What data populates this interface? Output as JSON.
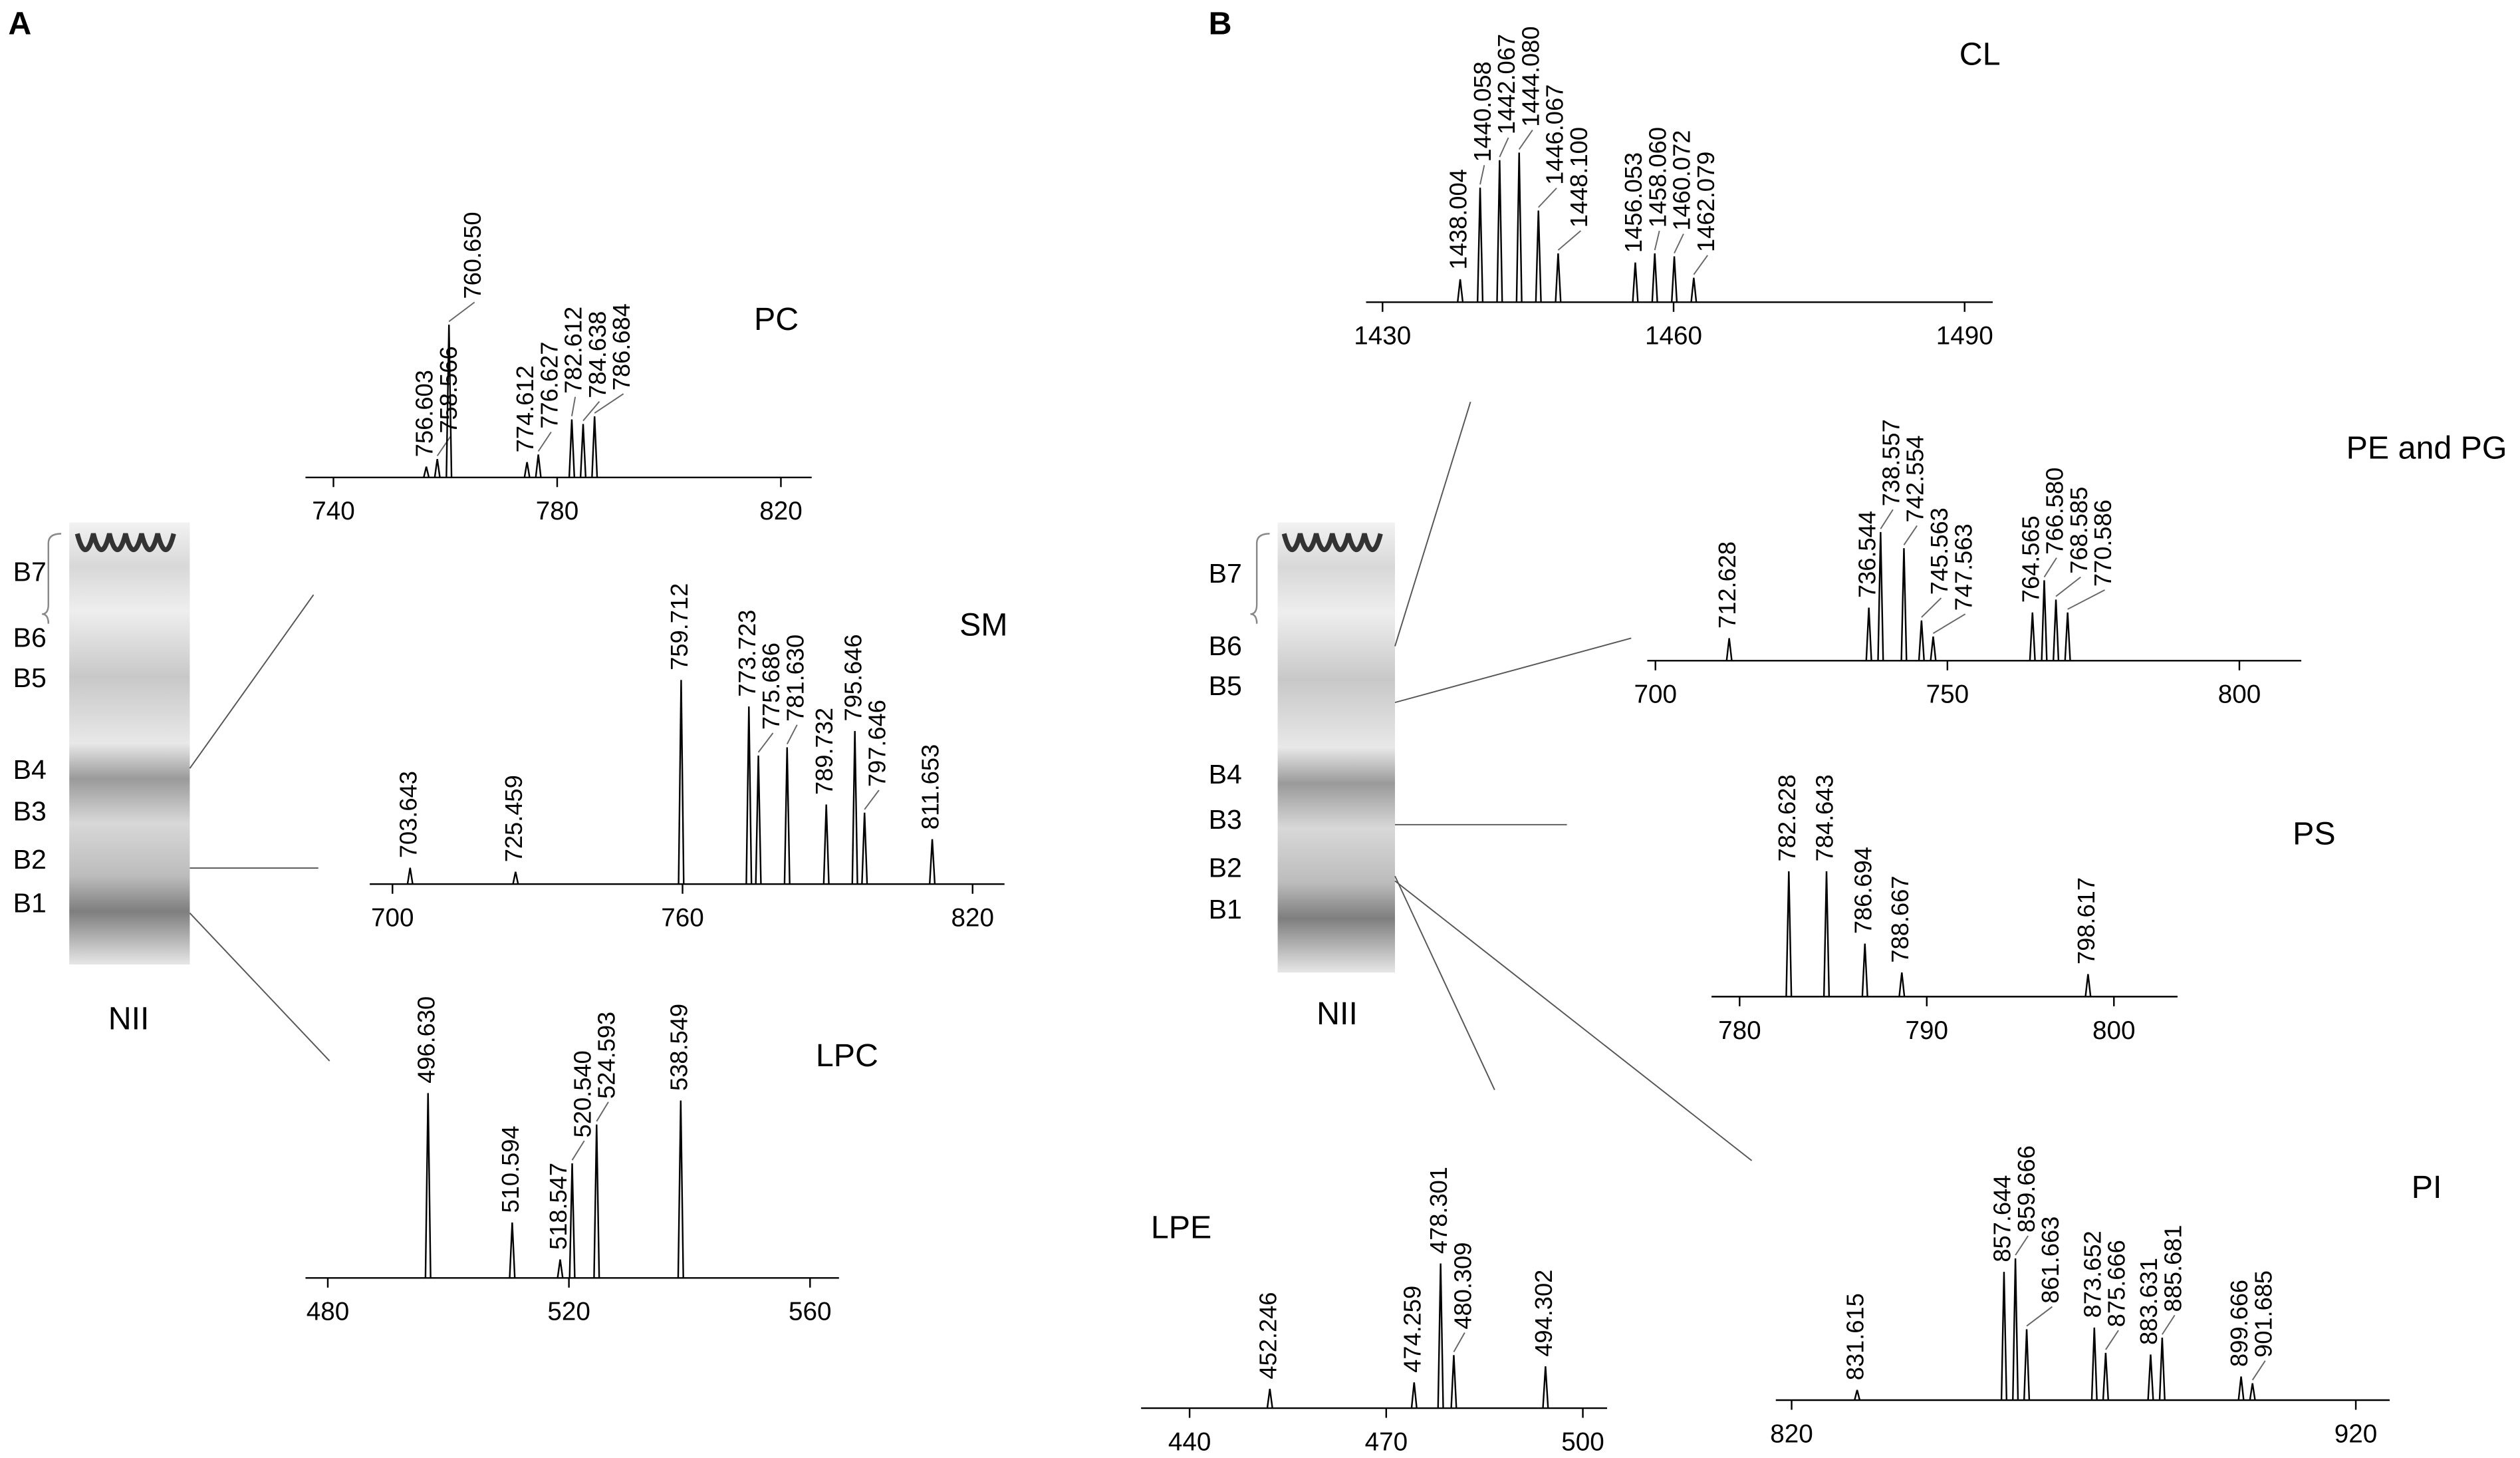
{
  "panel_labels": [
    "A",
    "B"
  ],
  "plates": [
    {
      "caption": "NII",
      "bands": [
        {
          "label": "B7",
          "color": "#808080"
        },
        {
          "label": "B6",
          "color": "#808080"
        },
        {
          "label": "B5",
          "color": "#808080"
        },
        {
          "label": "B4",
          "color": "#000000"
        },
        {
          "label": "B3",
          "color": "#808080"
        },
        {
          "label": "B2",
          "color": "#000000"
        },
        {
          "label": "B1",
          "color": "#000000"
        }
      ]
    },
    {
      "caption": "NII",
      "bands": [
        {
          "label": "B7",
          "color": "#808080"
        },
        {
          "label": "B6",
          "color": "#000000"
        },
        {
          "label": "B5",
          "color": "#000000"
        },
        {
          "label": "B4",
          "color": "#808080"
        },
        {
          "label": "B3",
          "color": "#000000"
        },
        {
          "label": "B2",
          "color": "#000000"
        },
        {
          "label": "B1",
          "color": "#808080"
        }
      ]
    }
  ],
  "chart_data": [
    {
      "type": "spectrum",
      "title": "PC",
      "xlim": [
        735,
        825.5
      ],
      "xticks": [
        740,
        780,
        820
      ],
      "x": [
        756.603,
        758.566,
        760.65,
        774.612,
        776.627,
        782.612,
        784.638,
        786.684
      ],
      "x_labels": [
        "756.603",
        "758.566",
        "760.650",
        "774.612",
        "776.627",
        "782.612",
        "784.638",
        "786.684"
      ],
      "values": [
        7,
        12,
        100,
        10,
        15,
        38,
        35,
        40
      ],
      "color": "#000000"
    },
    {
      "type": "spectrum",
      "title": "SM",
      "xlim": [
        695.3,
        826.6
      ],
      "xticks": [
        700,
        760,
        820
      ],
      "x": [
        703.643,
        725.459,
        759.712,
        773.723,
        775.686,
        781.63,
        789.732,
        795.646,
        797.646,
        811.653
      ],
      "x_labels": [
        "703.643",
        "725.459",
        "759.712",
        "773.723",
        "775.686",
        "781.630",
        "789.732",
        "795.646",
        "797.646",
        "811.653"
      ],
      "values": [
        8,
        6,
        100,
        87,
        63,
        67,
        39,
        75,
        35,
        22
      ],
      "color": "#000000"
    },
    {
      "type": "spectrum",
      "title": "LPC",
      "xlim": [
        476.3,
        564.8
      ],
      "xticks": [
        480,
        520,
        560
      ],
      "x": [
        496.63,
        510.594,
        518.547,
        520.54,
        524.593,
        538.549
      ],
      "x_labels": [
        "496.630",
        "510.594",
        "518.547",
        "520.540",
        "524.593",
        "538.549"
      ],
      "values": [
        100,
        30,
        10,
        62,
        83,
        96
      ],
      "color": "#000000"
    },
    {
      "type": "spectrum",
      "title": "CL",
      "xlim": [
        1428.3,
        1492.9
      ],
      "xticks": [
        1430,
        1460,
        1490
      ],
      "x": [
        1438.004,
        1440.058,
        1442.067,
        1444.08,
        1446.067,
        1448.1,
        1456.053,
        1458.06,
        1460.072,
        1462.079
      ],
      "x_labels": [
        "1438.004",
        "1440.058",
        "1442.067",
        "1444.080",
        "1446.067",
        "1448.100",
        "1456.053",
        "1458.060",
        "1460.072",
        "1462.079"
      ],
      "values": [
        15,
        75,
        93,
        98,
        60,
        32,
        26,
        32,
        30,
        16
      ],
      "color": "#000000"
    },
    {
      "type": "spectrum",
      "title": "PE and PG",
      "xlim": [
        698.6,
        810.6
      ],
      "xticks": [
        700,
        750,
        800
      ],
      "x": [
        712.628,
        736.544,
        738.557,
        742.554,
        745.563,
        747.563,
        764.565,
        766.58,
        768.585,
        770.586
      ],
      "x_labels": [
        "712.628",
        "736.544",
        "738.557",
        "742.554",
        "745.563",
        "747.563",
        "764.565",
        "766.580",
        "768.585",
        "770.586"
      ],
      "values": [
        14,
        33,
        80,
        70,
        25,
        15,
        30,
        50,
        38,
        30
      ],
      "color": "#000000"
    },
    {
      "type": "spectrum",
      "title": "PS",
      "xlim": [
        778.5,
        803.4
      ],
      "xticks": [
        780,
        790,
        800
      ],
      "x": [
        782.628,
        784.643,
        786.694,
        788.667,
        798.617
      ],
      "x_labels": [
        "782.628",
        "784.643",
        "786.694",
        "788.667",
        "798.617"
      ],
      "values": [
        78,
        78,
        33,
        15,
        14
      ],
      "color": "#000000"
    },
    {
      "type": "spectrum",
      "title": "LPE",
      "xlim": [
        432.6,
        503.7
      ],
      "xticks": [
        440,
        470,
        500
      ],
      "x": [
        452.246,
        474.259,
        478.301,
        480.309,
        494.302
      ],
      "x_labels": [
        "452.246",
        "474.259",
        "478.301",
        "480.309",
        "494.302"
      ],
      "values": [
        12,
        16,
        90,
        33,
        26
      ],
      "color": "#000000"
    },
    {
      "type": "spectrum",
      "title": "PI",
      "xlim": [
        817.2,
        926
      ],
      "xticks": [
        820,
        920
      ],
      "x": [
        831.615,
        857.644,
        859.666,
        861.663,
        873.652,
        875.666,
        883.631,
        885.681,
        899.666,
        901.685
      ],
      "x_labels": [
        "831.615",
        "857.644",
        "859.666",
        "861.663",
        "873.652",
        "875.666",
        "883.631",
        "885.681",
        "899.666",
        "901.685"
      ],
      "values": [
        6,
        76,
        84,
        42,
        43,
        28,
        27,
        37,
        14,
        10
      ],
      "color": "#000000"
    }
  ]
}
